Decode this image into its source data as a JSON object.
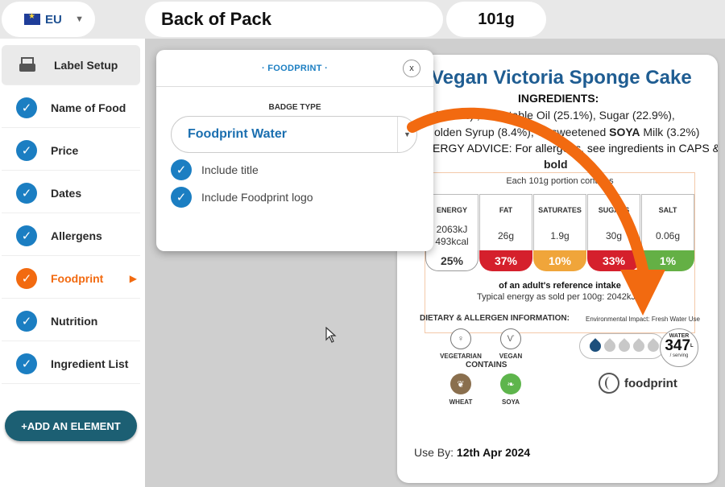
{
  "topbar": {
    "region": "EU",
    "label_name": "Back of Pack",
    "weight": "101g"
  },
  "sidebar": {
    "items": [
      {
        "label": "Label Setup"
      },
      {
        "label": "Name of Food"
      },
      {
        "label": "Price"
      },
      {
        "label": "Dates"
      },
      {
        "label": "Allergens"
      },
      {
        "label": "Foodprint"
      },
      {
        "label": "Nutrition"
      },
      {
        "label": "Ingredient List"
      }
    ],
    "add_button": "+ADD AN ELEMENT",
    "check_glyph": "✓"
  },
  "popup": {
    "title": "· FOODPRINT ·",
    "close": "x",
    "badge_type_label": "BADGE TYPE",
    "badge_type_value": "Foodprint Water",
    "options": [
      "Include title",
      "Include Foodprint logo"
    ]
  },
  "label": {
    "title": "Vegan Victoria Sponge Cake",
    "ingredients_heading": "INGREDIENTS:",
    "ingredients_line1": "(40.2%) , Vegetable Oil (25.1%), Sugar (22.9%),",
    "ingredients_line2_a": "olden Syrup (8.4%), Uns",
    "ingredients_line2_b": "weetened ",
    "ingredients_line2_allergen": "SOYA",
    "ingredients_line2_c": " Milk (3.2%)",
    "allergy_advice": "ERGY ADVICE: For allergens, see ingredients in CAPS &",
    "allergy_advice_bold": "bold",
    "portion_note": "Each 101g portion contains",
    "nutrients": [
      {
        "name": "ENERGY",
        "value": "2063kJ",
        "value2": "493kcal",
        "ri": "25%",
        "color": "white"
      },
      {
        "name": "FAT",
        "value": "26g",
        "value2": "",
        "ri": "37%",
        "color": "red"
      },
      {
        "name": "SATURATES",
        "value": "1.9g",
        "value2": "",
        "ri": "10%",
        "color": "amber"
      },
      {
        "name": "SUGARS",
        "value": "30g",
        "value2": "",
        "ri": "33%",
        "color": "red"
      },
      {
        "name": "SALT",
        "value": "0.06g",
        "value2": "",
        "ri": "1%",
        "color": "green"
      }
    ],
    "ref_intake_note": "of an adult's reference intake",
    "typical_energy": "Typical energy as sold per 100g: 2042kJ/4",
    "dietary_heading": "DIETARY & ALLERGEN INFORMATION:",
    "diet_items": [
      "VEGETARIAN",
      "VEGAN"
    ],
    "contains_heading": "CONTAINS",
    "contains_items": [
      "WHEAT",
      "SOYA"
    ],
    "env_heading": "Environmental Impact: Fresh Water Use",
    "water_label": "WATER",
    "water_value": "347",
    "water_unit": "L",
    "water_per": "/ serving",
    "water_drops": 1,
    "water_drops_total": 5,
    "foodprint_logo": "foodprint",
    "use_by_label": "Use By: ",
    "use_by_value": "12th Apr 2024"
  },
  "colors": {
    "accent_blue": "#1b7ec2",
    "active_orange": "#f26a10",
    "add_button": "#1c5f73",
    "title_blue": "#1f5d92"
  }
}
